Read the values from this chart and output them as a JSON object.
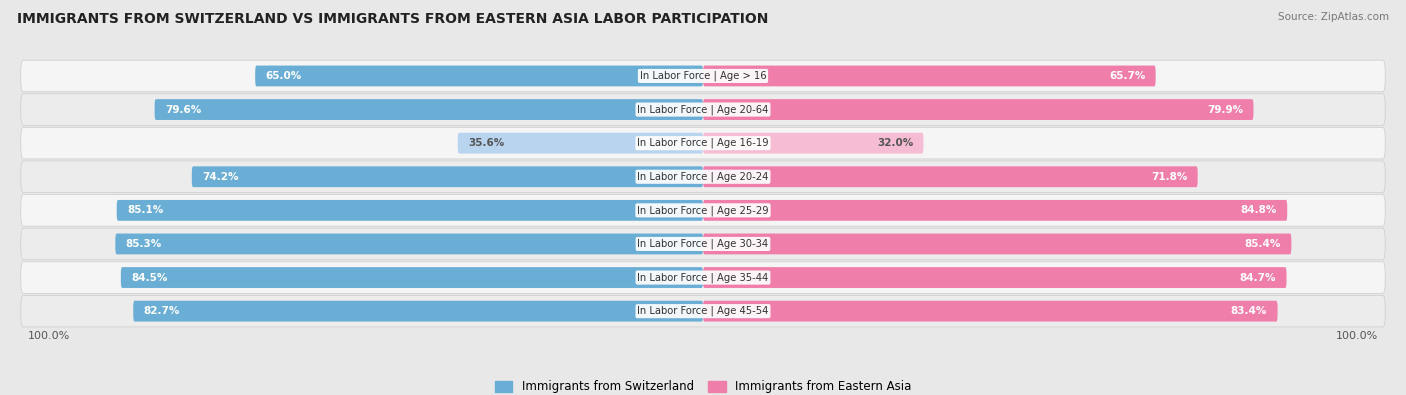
{
  "title": "IMMIGRANTS FROM SWITZERLAND VS IMMIGRANTS FROM EASTERN ASIA LABOR PARTICIPATION",
  "source": "Source: ZipAtlas.com",
  "categories": [
    "In Labor Force | Age > 16",
    "In Labor Force | Age 20-64",
    "In Labor Force | Age 16-19",
    "In Labor Force | Age 20-24",
    "In Labor Force | Age 25-29",
    "In Labor Force | Age 30-34",
    "In Labor Force | Age 35-44",
    "In Labor Force | Age 45-54"
  ],
  "switzerland_values": [
    65.0,
    79.6,
    35.6,
    74.2,
    85.1,
    85.3,
    84.5,
    82.7
  ],
  "eastern_asia_values": [
    65.7,
    79.9,
    32.0,
    71.8,
    84.8,
    85.4,
    84.7,
    83.4
  ],
  "switzerland_color": "#6aaed6",
  "eastern_asia_color": "#f07eaa",
  "switzerland_color_light": "#b8d4ef",
  "eastern_asia_color_light": "#f5bcd4",
  "background_color": "#e8e8e8",
  "row_bg_even": "#f5f5f5",
  "row_bg_odd": "#ececec",
  "legend_switzerland": "Immigrants from Switzerland",
  "legend_eastern_asia": "Immigrants from Eastern Asia",
  "threshold": 50.0
}
